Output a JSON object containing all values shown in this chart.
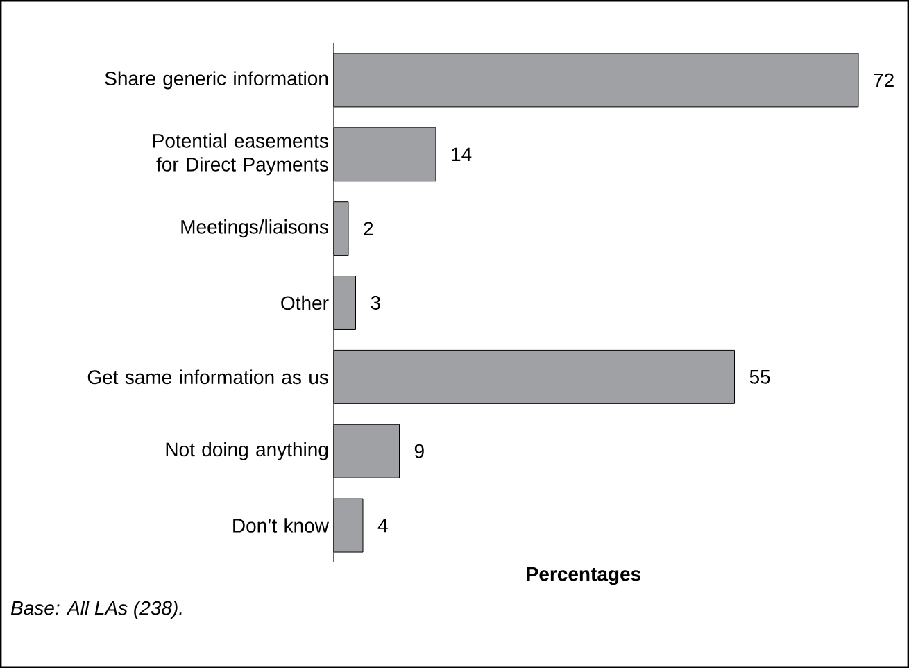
{
  "chart_data": {
    "type": "bar",
    "orientation": "horizontal",
    "categories": [
      "Share generic information",
      "Potential easements for Direct Payments",
      "Meetings/liaisons",
      "Other",
      "Get same information as us",
      "Not doing anything",
      "Don’t know"
    ],
    "values": [
      72,
      14,
      2,
      3,
      55,
      9,
      4
    ],
    "color": "#a0a1a4",
    "data_labels": true,
    "xlabel": "Percentages",
    "annotations": [
      "Base: All LAs (238)."
    ]
  }
}
